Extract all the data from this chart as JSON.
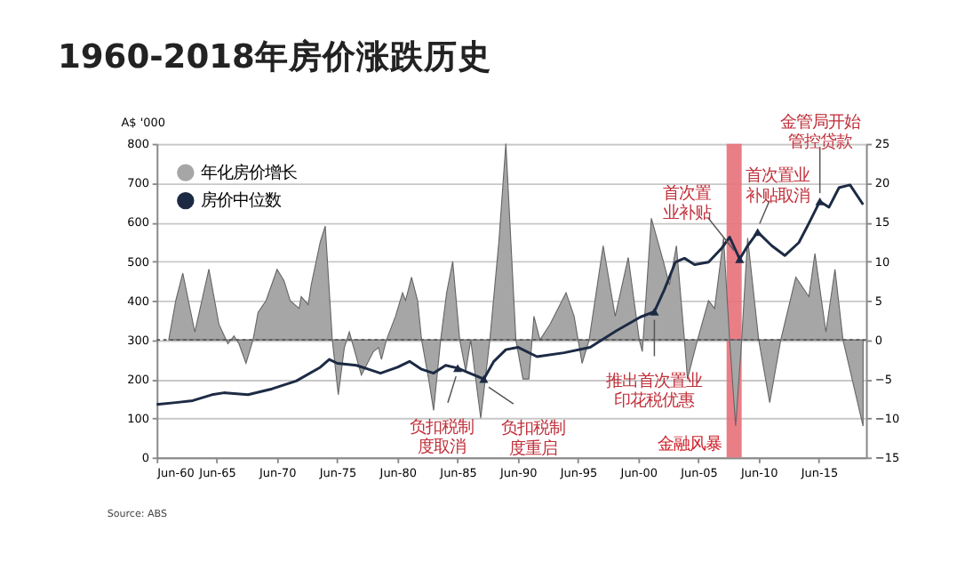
{
  "chart_data": {
    "type": "line",
    "title": "1960-2018年房价涨跌历史",
    "ylabel": "A$ '000",
    "series": [
      {
        "name": "年化房价增长",
        "type": "area",
        "axis": "y2",
        "color": "#a6a6a6",
        "x": [
          "1961-06",
          "1962-01",
          "1962-08",
          "1963-08",
          "1964-10",
          "1965-08",
          "1966-05",
          "1966-11",
          "1967-04",
          "1967-11",
          "1968-06",
          "1968-11",
          "1969-07",
          "1970-06",
          "1971-01",
          "1971-07",
          "1972-04",
          "1972-06",
          "1973-01",
          "1973-04",
          "1974-01",
          "1974-06",
          "1975-01",
          "1975-07",
          "1976-01",
          "1976-06",
          "1977-06",
          "1978-06",
          "1978-11",
          "1979-02",
          "1979-07",
          "1980-04",
          "1980-11",
          "1981-02",
          "1981-08",
          "1982-02",
          "1982-06",
          "1983-01",
          "1983-06",
          "1984-01",
          "1984-07",
          "1985-01",
          "1985-08",
          "1986-02",
          "1986-07",
          "1987-05",
          "1988-02",
          "1988-11",
          "1989-06",
          "1990-04",
          "1990-11",
          "1991-05",
          "1991-10",
          "1992-04",
          "1993-02",
          "1994-06",
          "1995-02",
          "1995-10",
          "1996-05",
          "1997-07",
          "1998-07",
          "1999-08",
          "2000-07",
          "2000-10",
          "2001-07",
          "2002-07",
          "2003-01",
          "2003-08",
          "2004-04",
          "2004-07",
          "2005-05",
          "2006-04",
          "2006-10",
          "2007-07",
          "2008-01",
          "2008-07",
          "2009-01",
          "2009-07",
          "2010-06",
          "2011-05",
          "2012-04",
          "2013-07",
          "2014-08",
          "2015-02",
          "2016-01",
          "2016-10",
          "2017-06",
          "2019-02"
        ],
        "values": [
          0,
          5,
          8.5,
          1,
          9,
          2,
          -0.5,
          0.5,
          -0.5,
          -3,
          0,
          3.5,
          5,
          9,
          7.5,
          5,
          4,
          5.5,
          4.5,
          7,
          12.5,
          14.5,
          0,
          -7,
          -1,
          1,
          -4.5,
          -1.5,
          -1,
          -2.5,
          0,
          3,
          6,
          5,
          8,
          5,
          0,
          -5,
          -9,
          0,
          6,
          10,
          0,
          -4,
          0,
          -10,
          0,
          12.5,
          25,
          0,
          -5,
          -5,
          3,
          0,
          2,
          6,
          3,
          -3,
          0,
          12,
          3,
          10.5,
          0,
          -1.5,
          15.5,
          10,
          7,
          12,
          0,
          -5,
          0,
          5,
          4,
          13,
          0,
          -11,
          0,
          13,
          0,
          -8,
          0,
          8,
          5.5,
          11,
          1,
          9,
          0,
          -11
        ]
      },
      {
        "name": "房价中位数",
        "type": "line",
        "color": "#1c2a44",
        "x": [
          "1960-06",
          "1962-01",
          "1963-06",
          "1965-01",
          "1966-01",
          "1968-01",
          "1970-01",
          "1972-01",
          "1974-01",
          "1974-10",
          "1975-06",
          "1977-01",
          "1978-01",
          "1979-01",
          "1980-06",
          "1981-06",
          "1982-06",
          "1983-06",
          "1984-06",
          "1985-06",
          "1986-06",
          "1987-08",
          "1988-06",
          "1989-06",
          "1990-06",
          "1992-01",
          "1994-04",
          "1996-06",
          "1998-08",
          "2000-08",
          "2001-10",
          "2002-08",
          "2003-07",
          "2004-04",
          "2005-02",
          "2006-04",
          "2007-05",
          "2008-01",
          "2008-11",
          "2009-07",
          "2010-05",
          "2011-07",
          "2012-08",
          "2013-10",
          "2014-08",
          "2015-07",
          "2016-04",
          "2017-02",
          "2018-01",
          "2019-02"
        ],
        "values": [
          135,
          140,
          145,
          160,
          165,
          160,
          175,
          195,
          230,
          250,
          240,
          235,
          225,
          215,
          230,
          245,
          225,
          215,
          235,
          228,
          215,
          200,
          245,
          275,
          281,
          257,
          267,
          281,
          323,
          358,
          372,
          428,
          498,
          508,
          492,
          498,
          533,
          562,
          506,
          540,
          575,
          540,
          515,
          548,
          597,
          653,
          638,
          688,
          695,
          645
        ]
      }
    ],
    "xlim": [
      "1960-06",
      "2019-05"
    ],
    "xticks": [
      {
        "value": "1960-06",
        "label": "Jun-60"
      },
      {
        "value": "1965-06",
        "label": "Jun-65"
      },
      {
        "value": "1970-06",
        "label": "Jun-70"
      },
      {
        "value": "1975-06",
        "label": "Jun-75"
      },
      {
        "value": "1980-06",
        "label": "Jun-80"
      },
      {
        "value": "1985-06",
        "label": "Jun-85"
      },
      {
        "value": "1990-06",
        "label": "Jun-90"
      },
      {
        "value": "1995-06",
        "label": "Jun-95"
      },
      {
        "value": "2000-06",
        "label": "Jun-00"
      },
      {
        "value": "2005-06",
        "label": "Jun-05"
      },
      {
        "value": "2010-06",
        "label": "Jun-10"
      },
      {
        "value": "2015-06",
        "label": "Jun-15"
      }
    ],
    "ylim": [
      0,
      800
    ],
    "yticks": [
      0,
      100,
      200,
      300,
      400,
      500,
      600,
      700,
      800
    ],
    "y2lim": [
      -15,
      25
    ],
    "y2ticks": [
      -15,
      -10,
      -5,
      0,
      5,
      10,
      15,
      20,
      25
    ],
    "grid": "y",
    "legend": "top left",
    "ref_lines": [
      {
        "axis": "y2",
        "value": 0,
        "line_style": "dotted",
        "color": "#555555"
      }
    ],
    "bands": [
      {
        "axis": "x",
        "from": "2007-10",
        "to": "2009-01",
        "label": "金融风暴",
        "color": "#e8707a"
      }
    ],
    "annotations": [
      {
        "text": "负扣税制度取消",
        "x": "1985-06",
        "y": 228
      },
      {
        "text": "负扣税制度重启",
        "x": "1987-08",
        "y": 200
      },
      {
        "text": "首次置业补贴",
        "x": "2008-11",
        "y": 506
      },
      {
        "text": "首次置业补贴取消",
        "x": "2010-05",
        "y": 575
      },
      {
        "text": "金管局开始管控贷款",
        "x": "2015-07",
        "y": 653
      },
      {
        "text": "推出首次置业印花税优惠",
        "x": "2001-10",
        "y": 372
      },
      "Source: ABS"
    ]
  }
}
